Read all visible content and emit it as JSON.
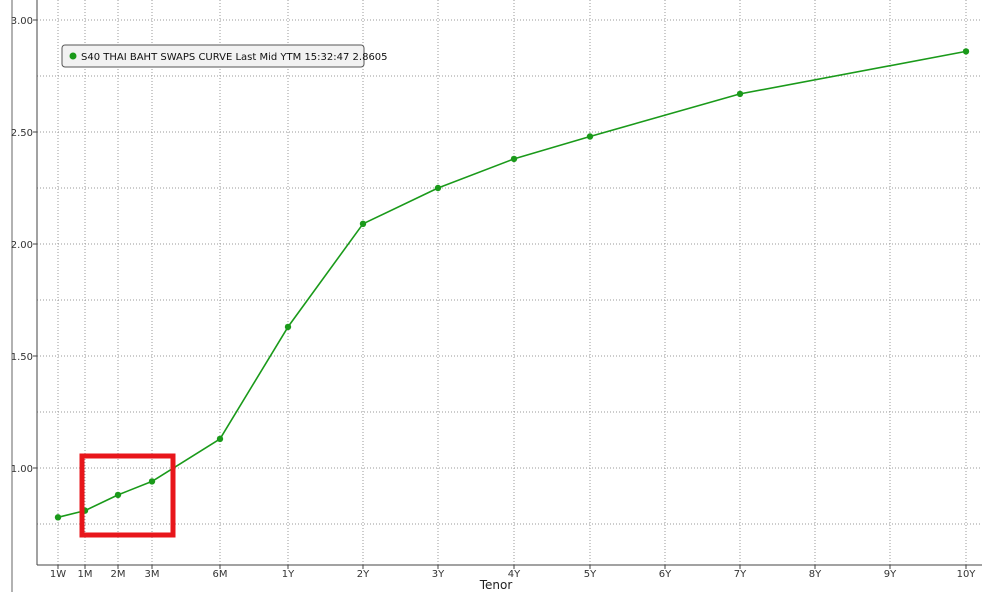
{
  "chart_data": {
    "type": "line",
    "title": "",
    "xlabel": "Tenor",
    "ylabel": "",
    "ylim": [
      0.7,
      3.05
    ],
    "y_ticks": [
      "1.00",
      "1.50",
      "2.00",
      "2.50",
      "3.00"
    ],
    "grid": true,
    "legend_position": "top-left",
    "categories": [
      "1W",
      "1M",
      "2M",
      "3M",
      "6M",
      "1Y",
      "2Y",
      "3Y",
      "4Y",
      "5Y",
      "6Y",
      "7Y",
      "8Y",
      "9Y",
      "10Y"
    ],
    "series": [
      {
        "name": "S40 THAI BAHT SWAPS CURVE Last Mid YTM 15:32:47 2.8605",
        "color": "#1a9a1a",
        "points": [
          {
            "x": "1W",
            "y": 0.78
          },
          {
            "x": "1M",
            "y": 0.81
          },
          {
            "x": "2M",
            "y": 0.88
          },
          {
            "x": "3M",
            "y": 0.94
          },
          {
            "x": "6M",
            "y": 1.13
          },
          {
            "x": "1Y",
            "y": 1.63
          },
          {
            "x": "2Y",
            "y": 2.09
          },
          {
            "x": "3Y",
            "y": 2.25
          },
          {
            "x": "4Y",
            "y": 2.38
          },
          {
            "x": "5Y",
            "y": 2.48
          },
          {
            "x": "7Y",
            "y": 2.67
          },
          {
            "x": "10Y",
            "y": 2.86
          }
        ]
      }
    ],
    "highlight_box": {
      "color": "#e8161b",
      "covers_categories": [
        "1M",
        "2M",
        "3M"
      ]
    }
  }
}
